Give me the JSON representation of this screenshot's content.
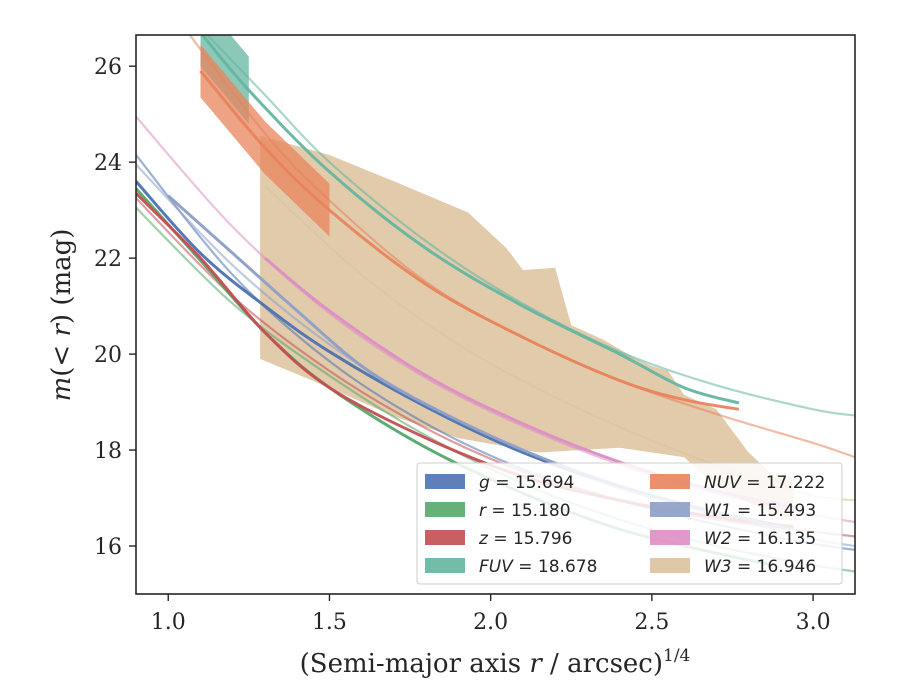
{
  "chart_data": {
    "type": "line",
    "xlabel": "(Semi-major axis r / arcsec)",
    "xlabel_parts": {
      "open": "(Semi-major axis ",
      "var": "r",
      "rest": " / arcsec)",
      "sup": "1/4"
    },
    "ylabel": "m(< r) (mag)",
    "ylabel_parts": {
      "var": "m",
      "rest": "(< ",
      "var2": "r",
      "close": ") (mag)"
    },
    "xlim": [
      0.9,
      3.13
    ],
    "ylim": [
      26.65,
      15.0
    ],
    "y_inverted": true,
    "xticks": [
      1.0,
      1.5,
      2.0,
      2.5,
      3.0
    ],
    "xtick_labels": [
      "1.0",
      "1.5",
      "2.0",
      "2.5",
      "3.0"
    ],
    "yticks": [
      16,
      18,
      20,
      22,
      24,
      26
    ],
    "ytick_labels": [
      "16",
      "18",
      "20",
      "22",
      "24",
      "26"
    ],
    "grid": false,
    "legend_placement": "lower-right",
    "series": [
      {
        "name": "g",
        "value": "15.694",
        "color": "#4c72b0",
        "model": [
          [
            0.9,
            24.15
          ],
          [
            1.2,
            21.65
          ],
          [
            1.5,
            19.85
          ],
          [
            1.8,
            18.55
          ],
          [
            2.1,
            17.6
          ],
          [
            2.4,
            16.95
          ],
          [
            2.7,
            16.45
          ],
          [
            3.0,
            16.05
          ],
          [
            3.13,
            15.92
          ]
        ],
        "profile": [
          [
            0.9,
            23.6
          ],
          [
            1.1,
            22.1
          ],
          [
            1.3,
            21.0
          ],
          [
            1.5,
            20.05
          ],
          [
            1.8,
            18.9
          ],
          [
            2.1,
            17.95
          ],
          [
            2.4,
            17.25
          ],
          [
            2.7,
            16.7
          ],
          [
            2.88,
            16.45
          ]
        ]
      },
      {
        "name": "r",
        "value": "15.180",
        "color": "#55a868",
        "model": [
          [
            0.9,
            23.05
          ],
          [
            1.2,
            21.05
          ],
          [
            1.5,
            19.55
          ],
          [
            1.8,
            18.3
          ],
          [
            2.1,
            17.3
          ],
          [
            2.4,
            16.55
          ],
          [
            2.7,
            16.0
          ],
          [
            3.0,
            15.6
          ],
          [
            3.13,
            15.47
          ]
        ],
        "profile": [
          [
            0.9,
            23.45
          ],
          [
            1.1,
            21.95
          ],
          [
            1.3,
            20.45
          ],
          [
            1.5,
            19.3
          ],
          [
            1.8,
            18.05
          ],
          [
            2.1,
            17.1
          ],
          [
            2.4,
            16.35
          ],
          [
            2.7,
            15.85
          ],
          [
            2.88,
            15.6
          ]
        ]
      },
      {
        "name": "z",
        "value": "15.796",
        "color": "#c44e52",
        "model": [
          [
            0.9,
            23.25
          ],
          [
            1.2,
            21.2
          ],
          [
            1.5,
            19.65
          ],
          [
            1.8,
            18.45
          ],
          [
            2.1,
            17.55
          ],
          [
            2.4,
            16.95
          ],
          [
            2.7,
            16.55
          ],
          [
            3.0,
            16.3
          ],
          [
            3.13,
            16.2
          ]
        ],
        "profile": [
          [
            0.9,
            23.35
          ],
          [
            1.1,
            22.0
          ],
          [
            1.3,
            20.45
          ],
          [
            1.5,
            19.3
          ],
          [
            1.8,
            18.25
          ],
          [
            2.1,
            17.45
          ],
          [
            2.4,
            16.95
          ],
          [
            2.7,
            16.6
          ],
          [
            2.94,
            16.4
          ]
        ]
      },
      {
        "name": "FUV",
        "value": "18.678",
        "color": "#64b5a0",
        "model": [
          [
            1.1,
            26.8
          ],
          [
            1.3,
            25.4
          ],
          [
            1.5,
            24.0
          ],
          [
            1.8,
            22.35
          ],
          [
            2.1,
            21.05
          ],
          [
            2.4,
            20.05
          ],
          [
            2.7,
            19.35
          ],
          [
            3.0,
            18.85
          ],
          [
            3.13,
            18.72
          ]
        ],
        "profile": [
          [
            1.1,
            26.7
          ],
          [
            1.25,
            25.5
          ],
          [
            1.5,
            23.8
          ],
          [
            1.8,
            22.2
          ],
          [
            2.1,
            21.0
          ],
          [
            2.4,
            20.0
          ],
          [
            2.6,
            19.3
          ],
          [
            2.77,
            18.98
          ]
        ]
      },
      {
        "name": "NUV",
        "value": "17.222",
        "color": "#e8845c",
        "model": [
          [
            1.05,
            26.8
          ],
          [
            1.3,
            24.6
          ],
          [
            1.5,
            23.2
          ],
          [
            1.8,
            21.5
          ],
          [
            2.1,
            20.35
          ],
          [
            2.4,
            19.45
          ],
          [
            2.7,
            18.75
          ],
          [
            3.0,
            18.15
          ],
          [
            3.13,
            17.85
          ]
        ],
        "profile": [
          [
            1.1,
            25.9
          ],
          [
            1.3,
            24.3
          ],
          [
            1.5,
            23.0
          ],
          [
            1.8,
            21.45
          ],
          [
            2.1,
            20.35
          ],
          [
            2.4,
            19.45
          ],
          [
            2.6,
            19.05
          ],
          [
            2.77,
            18.85
          ]
        ]
      },
      {
        "name": "W1",
        "value": "15.493",
        "color": "#8c9ec8",
        "model": [
          [
            0.9,
            23.95
          ],
          [
            1.2,
            21.85
          ],
          [
            1.5,
            20.2
          ],
          [
            1.8,
            18.95
          ],
          [
            2.1,
            17.95
          ],
          [
            2.4,
            17.2
          ],
          [
            2.7,
            16.65
          ],
          [
            3.0,
            16.15
          ],
          [
            3.13,
            16.0
          ]
        ],
        "profile": [
          [
            1.0,
            23.3
          ],
          [
            1.2,
            22.1
          ],
          [
            1.4,
            20.9
          ],
          [
            1.6,
            19.75
          ],
          [
            1.8,
            18.95
          ],
          [
            2.1,
            18.0
          ],
          [
            2.4,
            17.25
          ],
          [
            2.7,
            16.7
          ],
          [
            2.93,
            16.35
          ]
        ]
      },
      {
        "name": "W2",
        "value": "16.135",
        "color": "#dd8ec4",
        "model": [
          [
            0.9,
            24.95
          ],
          [
            1.2,
            22.65
          ],
          [
            1.5,
            20.85
          ],
          [
            1.8,
            19.5
          ],
          [
            2.1,
            18.5
          ],
          [
            2.4,
            17.7
          ],
          [
            2.7,
            17.1
          ],
          [
            3.0,
            16.65
          ],
          [
            3.13,
            16.5
          ]
        ],
        "profile": [
          [
            1.3,
            22.0
          ],
          [
            1.5,
            20.9
          ],
          [
            1.8,
            19.55
          ],
          [
            2.1,
            18.55
          ],
          [
            2.4,
            17.75
          ],
          [
            2.7,
            17.15
          ],
          [
            2.94,
            16.8
          ]
        ]
      },
      {
        "name": "W3",
        "value": "16.946",
        "color": "#dcc29c",
        "model": [
          [
            1.3,
            23.5
          ],
          [
            1.6,
            21.65
          ],
          [
            1.9,
            20.2
          ],
          [
            2.2,
            19.1
          ],
          [
            2.5,
            18.2
          ],
          [
            2.8,
            17.45
          ],
          [
            3.0,
            17.05
          ],
          [
            3.13,
            16.95
          ]
        ],
        "band_upper": [
          [
            1.285,
            19.9
          ],
          [
            1.5,
            19.3
          ],
          [
            1.7,
            18.7
          ],
          [
            1.9,
            18.25
          ],
          [
            2.15,
            17.95
          ],
          [
            2.4,
            18.05
          ],
          [
            2.6,
            17.85
          ],
          [
            2.7,
            17.25
          ],
          [
            2.8,
            16.9
          ],
          [
            2.9,
            16.6
          ],
          [
            2.94,
            16.6
          ]
        ],
        "band_lower": [
          [
            1.285,
            24.55
          ],
          [
            1.5,
            24.15
          ],
          [
            1.7,
            23.6
          ],
          [
            1.93,
            22.95
          ],
          [
            2.05,
            22.2
          ],
          [
            2.1,
            21.75
          ],
          [
            2.2,
            21.8
          ],
          [
            2.25,
            20.6
          ],
          [
            2.35,
            20.3
          ],
          [
            2.45,
            19.9
          ],
          [
            2.5,
            19.75
          ],
          [
            2.55,
            19.65
          ],
          [
            2.6,
            19.15
          ],
          [
            2.7,
            18.85
          ],
          [
            2.8,
            17.95
          ],
          [
            2.88,
            17.45
          ],
          [
            2.94,
            17.45
          ]
        ]
      }
    ]
  }
}
